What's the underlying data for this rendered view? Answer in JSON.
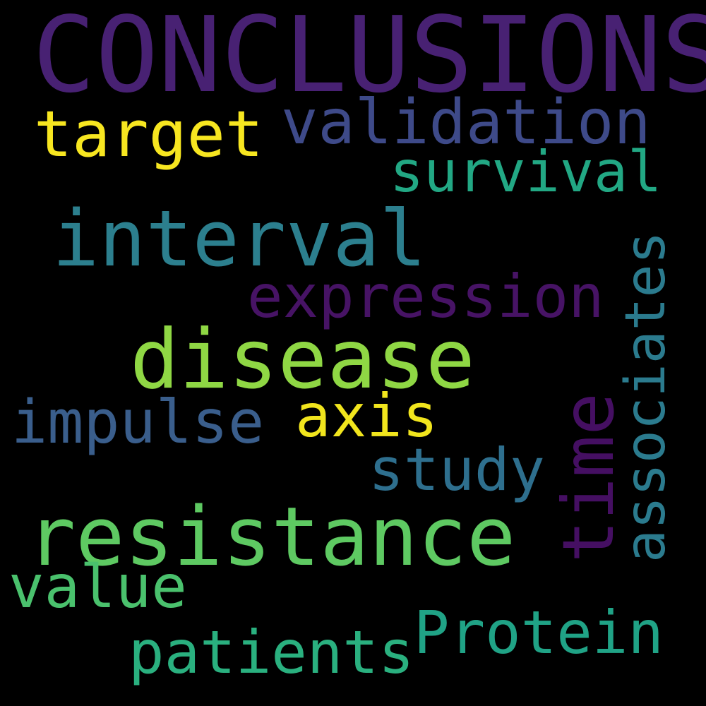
{
  "words": [
    {
      "text": "CONCLUSIONS",
      "color": "#482173"
    },
    {
      "text": "validation",
      "color": "#3e4a89"
    },
    {
      "text": "target",
      "color": "#f7e620"
    },
    {
      "text": "survival",
      "color": "#22a884"
    },
    {
      "text": "interval",
      "color": "#2c7f8e"
    },
    {
      "text": "expression",
      "color": "#471365"
    },
    {
      "text": "associates",
      "color": "#2b7b8e"
    },
    {
      "text": "disease",
      "color": "#8fd744"
    },
    {
      "text": "time",
      "color": "#450f62"
    },
    {
      "text": "impulse",
      "color": "#3a5e8c"
    },
    {
      "text": "axis",
      "color": "#f1e51d"
    },
    {
      "text": "study",
      "color": "#2e6f8e"
    },
    {
      "text": "resistance",
      "color": "#5ec962"
    },
    {
      "text": "value",
      "color": "#4ac16d"
    },
    {
      "text": "Protein",
      "color": "#20a386"
    },
    {
      "text": "patients",
      "color": "#2ab07f"
    }
  ]
}
